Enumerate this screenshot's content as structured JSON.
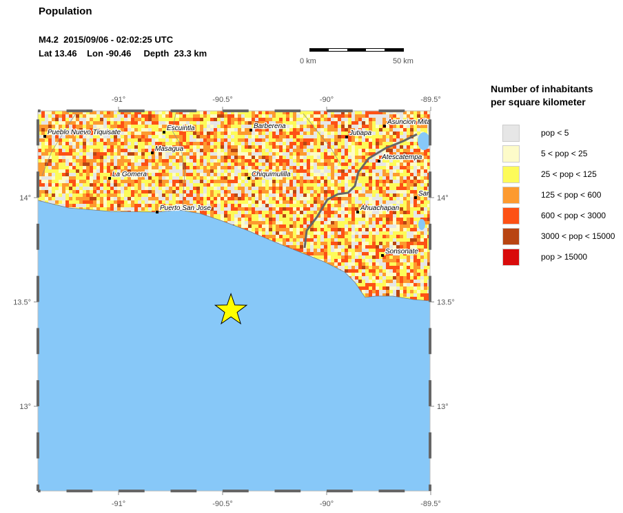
{
  "header": {
    "title": "Population",
    "event_line": "M4.2  2015/09/06 - 02:02:25 UTC",
    "location_line": "Lat 13.46    Lon -90.46     Depth  23.3 km"
  },
  "scale_bar": {
    "start_label": "0 km",
    "end_label": "50 km"
  },
  "map": {
    "lon_ticks": [
      "-91°",
      "-90.5°",
      "-90°",
      "-89.5°"
    ],
    "lat_ticks": [
      "14°",
      "13.5°",
      "13°"
    ],
    "ocean_color": "#87c8f8",
    "epicenter": {
      "lat": 13.46,
      "lon": -90.46,
      "marker": "star-icon",
      "color": "#ffff00"
    },
    "cities": [
      "Pueblo Nuevo Tiquisate",
      "Escuintla",
      "Barberena",
      "Jutiapa",
      "Asuncion Mita",
      "Masagua",
      "Atescatempa",
      "La Gomera",
      "Chiquimulilla",
      "Puerto San Jose",
      "Ahuachapan",
      "Sonsonate",
      "San"
    ]
  },
  "legend": {
    "title_line1": "Number of inhabitants",
    "title_line2": "per square kilometer",
    "items": [
      {
        "label": "pop < 5",
        "color": "#e6e6e6"
      },
      {
        "label": "5 < pop < 25",
        "color": "#fdfbc9"
      },
      {
        "label": "25 < pop < 125",
        "color": "#fdfb59"
      },
      {
        "label": "125 < pop < 600",
        "color": "#fd9a2f"
      },
      {
        "label": "600 < pop < 3000",
        "color": "#fd5115"
      },
      {
        "label": "3000 < pop < 15000",
        "color": "#b84512"
      },
      {
        "label": "pop > 15000",
        "color": "#d90b0b"
      }
    ]
  }
}
